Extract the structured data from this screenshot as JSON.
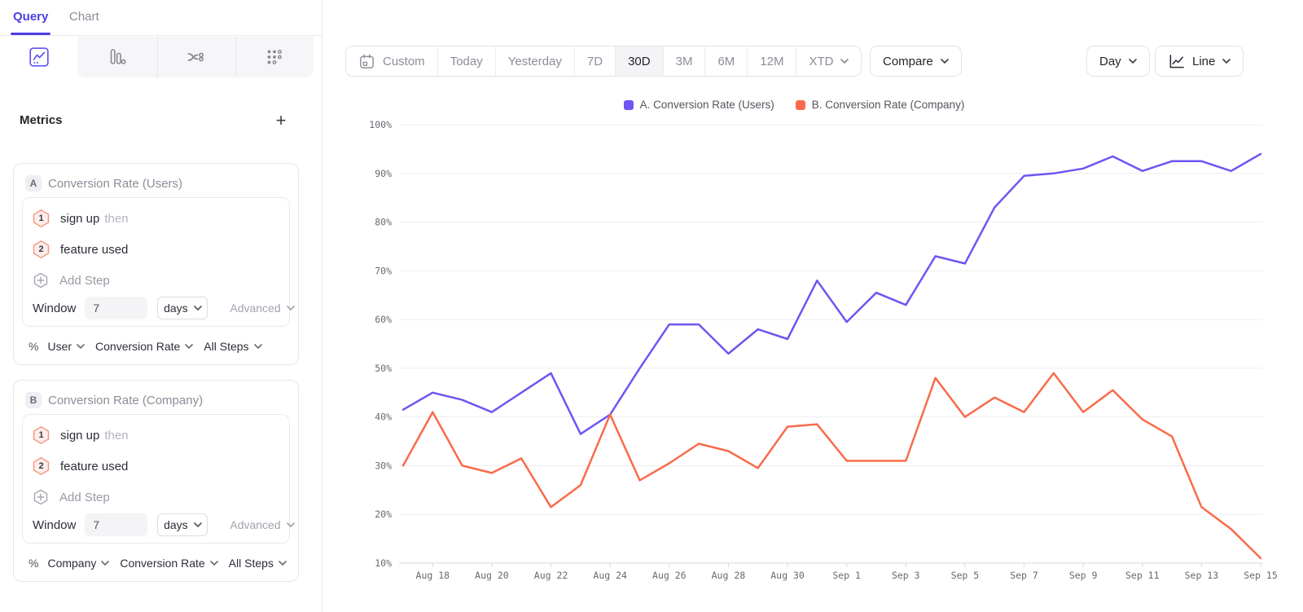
{
  "sidebar": {
    "tabs": {
      "query": "Query",
      "chart": "Chart"
    },
    "report_types": [
      "insights",
      "funnels",
      "flows",
      "retention"
    ],
    "metrics": {
      "title": "Metrics",
      "add_label": "+",
      "cards": [
        {
          "letter": "A",
          "title": "Conversion Rate (Users)",
          "steps": [
            {
              "num": "1",
              "event": "sign up",
              "suffix": "then"
            },
            {
              "num": "2",
              "event": "feature used",
              "suffix": ""
            }
          ],
          "add_step": "Add Step",
          "window": {
            "label": "Window",
            "value": "7",
            "unit": "days",
            "advanced": "Advanced"
          },
          "measure": {
            "symbol": "%",
            "entity": "User",
            "metric": "Conversion Rate",
            "scope": "All Steps"
          }
        },
        {
          "letter": "B",
          "title": "Conversion Rate (Company)",
          "steps": [
            {
              "num": "1",
              "event": "sign up",
              "suffix": "then"
            },
            {
              "num": "2",
              "event": "feature used",
              "suffix": ""
            }
          ],
          "add_step": "Add Step",
          "window": {
            "label": "Window",
            "value": "7",
            "unit": "days",
            "advanced": "Advanced"
          },
          "measure": {
            "symbol": "%",
            "entity": "Company",
            "metric": "Conversion Rate",
            "scope": "All Steps"
          }
        }
      ]
    }
  },
  "toolbar": {
    "ranges": [
      {
        "label": "Custom"
      },
      {
        "label": "Today"
      },
      {
        "label": "Yesterday"
      },
      {
        "label": "7D"
      },
      {
        "label": "30D",
        "active": true
      },
      {
        "label": "3M"
      },
      {
        "label": "6M"
      },
      {
        "label": "12M"
      },
      {
        "label": "XTD"
      }
    ],
    "compare_label": "Compare",
    "interval_label": "Day",
    "chart_type_label": "Line"
  },
  "chart_data": {
    "type": "line",
    "title": "",
    "xlabel": "",
    "ylabel": "",
    "ylim": [
      10,
      100
    ],
    "y_tick_step": 10,
    "y_tick_suffix": "%",
    "grid": true,
    "legend_position": "top-center",
    "x": [
      "Aug 17",
      "Aug 18",
      "Aug 19",
      "Aug 20",
      "Aug 21",
      "Aug 22",
      "Aug 23",
      "Aug 24",
      "Aug 25",
      "Aug 26",
      "Aug 27",
      "Aug 28",
      "Aug 29",
      "Aug 30",
      "Aug 31",
      "Sep 1",
      "Sep 2",
      "Sep 3",
      "Sep 4",
      "Sep 5",
      "Sep 6",
      "Sep 7",
      "Sep 8",
      "Sep 9",
      "Sep 10",
      "Sep 11",
      "Sep 12",
      "Sep 13",
      "Sep 14",
      "Sep 15"
    ],
    "x_tick_every": 2,
    "series": [
      {
        "name": "A. Conversion Rate (Users)",
        "color": "#6f55f2",
        "values": [
          41.5,
          45,
          43.5,
          41,
          45,
          49,
          36.5,
          40.5,
          50,
          59,
          59,
          53,
          58,
          56,
          68,
          59.5,
          65.5,
          63,
          73,
          71.5,
          83,
          89.5,
          90,
          91,
          93.5,
          90.5,
          92.5,
          92.5,
          90.5,
          94
        ]
      },
      {
        "name": "B. Conversion Rate (Company)",
        "color": "#f96b4a",
        "values": [
          30,
          41,
          30,
          28.5,
          31.5,
          21.5,
          26,
          40.5,
          27,
          30.5,
          34.5,
          33,
          29.5,
          38,
          38.5,
          31,
          31,
          31,
          48,
          40,
          44,
          41,
          49,
          41,
          45.5,
          39.5,
          36,
          21.5,
          17,
          11
        ]
      }
    ]
  }
}
